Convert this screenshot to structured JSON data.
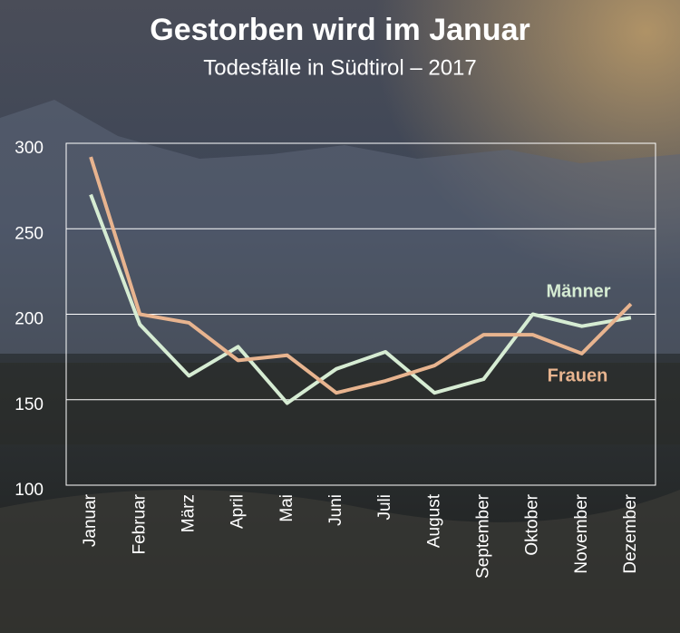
{
  "chart_data": {
    "type": "line",
    "title": "Gestorben wird im Januar",
    "subtitle": "Todesfälle in Südtirol – 2017",
    "categories": [
      "Januar",
      "Februar",
      "März",
      "April",
      "Mai",
      "Juni",
      "Juli",
      "August",
      "September",
      "Oktober",
      "November",
      "Dezember"
    ],
    "series": [
      {
        "name": "Männer",
        "color": "#d6ecd3",
        "values": [
          270,
          194,
          164,
          181,
          148,
          168,
          178,
          154,
          162,
          200,
          193,
          198
        ]
      },
      {
        "name": "Frauen",
        "color": "#e8b48f",
        "values": [
          292,
          200,
          195,
          173,
          176,
          154,
          161,
          170,
          188,
          188,
          177,
          206
        ]
      }
    ],
    "ylim": [
      100,
      300
    ],
    "yticks": [
      100,
      150,
      200,
      250,
      300
    ],
    "grid": true
  }
}
